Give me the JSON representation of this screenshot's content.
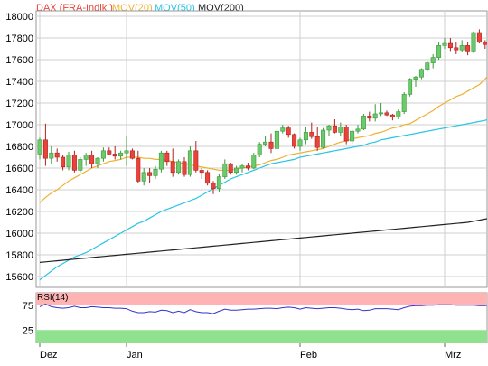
{
  "legend": [
    {
      "label": "DAX (FRA-Indik.)",
      "color": "#e8443a"
    },
    {
      "label": "MOV(20)",
      "color": "#f0b030"
    },
    {
      "label": "MOV(50)",
      "color": "#29c4e6"
    },
    {
      "label": "MOV(200)",
      "color": "#222222"
    }
  ],
  "rsi_label": "RSI(14)",
  "colors": {
    "up": "#6cc96c",
    "up_border": "#3a9a3a",
    "down": "#e8443a",
    "down_border": "#b02020",
    "grid": "#cfcfcf",
    "frame": "#999999",
    "rsi_line": "#3333cc",
    "rsi_overbought": "#ffb3b3",
    "rsi_oversold": "#8fe08f"
  },
  "chart_data": [
    {
      "type": "candlestick",
      "title": "DAX (FRA-Indik.)",
      "ylim": [
        15500,
        18050
      ],
      "yticks": [
        15600,
        15800,
        16000,
        16200,
        16400,
        16600,
        16800,
        17000,
        17200,
        17400,
        17600,
        17800,
        18000
      ],
      "xticks": [
        {
          "label": "Dez",
          "index": 0
        },
        {
          "label": "Jan",
          "index": 15
        },
        {
          "label": "Feb",
          "index": 45
        },
        {
          "label": "Mrz",
          "index": 70
        }
      ],
      "ohlc": [
        [
          16730,
          16880,
          16680,
          16860
        ],
        [
          16860,
          17010,
          16620,
          16690
        ],
        [
          16690,
          16800,
          16640,
          16740
        ],
        [
          16740,
          16780,
          16660,
          16700
        ],
        [
          16700,
          16720,
          16580,
          16610
        ],
        [
          16610,
          16750,
          16580,
          16720
        ],
        [
          16720,
          16760,
          16560,
          16580
        ],
        [
          16580,
          16700,
          16560,
          16680
        ],
        [
          16680,
          16740,
          16620,
          16720
        ],
        [
          16720,
          16760,
          16600,
          16640
        ],
        [
          16640,
          16700,
          16600,
          16690
        ],
        [
          16690,
          16790,
          16660,
          16760
        ],
        [
          16760,
          16790,
          16720,
          16730
        ],
        [
          16730,
          16800,
          16680,
          16710
        ],
        [
          16710,
          16760,
          16680,
          16740
        ],
        [
          16740,
          16900,
          16620,
          16760
        ],
        [
          16760,
          16780,
          16680,
          16690
        ],
        [
          16690,
          16760,
          16460,
          16480
        ],
        [
          16480,
          16600,
          16440,
          16560
        ],
        [
          16560,
          16600,
          16460,
          16530
        ],
        [
          16530,
          16620,
          16500,
          16590
        ],
        [
          16590,
          16760,
          16560,
          16740
        ],
        [
          16740,
          16760,
          16620,
          16660
        ],
        [
          16660,
          16780,
          16520,
          16560
        ],
        [
          16560,
          16680,
          16540,
          16660
        ],
        [
          16660,
          16700,
          16520,
          16540
        ],
        [
          16540,
          16800,
          16520,
          16760
        ],
        [
          16760,
          16850,
          16560,
          16580
        ],
        [
          16580,
          16600,
          16500,
          16560
        ],
        [
          16560,
          16580,
          16440,
          16460
        ],
        [
          16460,
          16480,
          16360,
          16410
        ],
        [
          16410,
          16550,
          16380,
          16520
        ],
        [
          16520,
          16680,
          16500,
          16640
        ],
        [
          16640,
          16650,
          16540,
          16560
        ],
        [
          16560,
          16620,
          16540,
          16600
        ],
        [
          16600,
          16640,
          16560,
          16620
        ],
        [
          16620,
          16650,
          16580,
          16600
        ],
        [
          16600,
          16740,
          16590,
          16720
        ],
        [
          16720,
          16840,
          16700,
          16820
        ],
        [
          16820,
          16900,
          16800,
          16840
        ],
        [
          16840,
          16920,
          16740,
          16780
        ],
        [
          16780,
          16960,
          16770,
          16940
        ],
        [
          16940,
          17000,
          16920,
          16970
        ],
        [
          16970,
          16990,
          16880,
          16910
        ],
        [
          16910,
          16920,
          16780,
          16800
        ],
        [
          16800,
          16880,
          16760,
          16860
        ],
        [
          16860,
          16980,
          16820,
          16930
        ],
        [
          16930,
          17020,
          16870,
          16890
        ],
        [
          16890,
          16980,
          16760,
          16790
        ],
        [
          16790,
          16970,
          16780,
          16950
        ],
        [
          16950,
          17000,
          16900,
          16990
        ],
        [
          16990,
          17050,
          16920,
          16930
        ],
        [
          16930,
          17020,
          16900,
          16980
        ],
        [
          16980,
          17000,
          16820,
          16850
        ],
        [
          16850,
          16960,
          16820,
          16940
        ],
        [
          16940,
          17000,
          16920,
          16960
        ],
        [
          16960,
          17100,
          16950,
          17080
        ],
        [
          17080,
          17120,
          17030,
          17060
        ],
        [
          17060,
          17190,
          17030,
          17100
        ],
        [
          17100,
          17200,
          17080,
          17110
        ],
        [
          17110,
          17130,
          17080,
          17090
        ],
        [
          17090,
          17100,
          17040,
          17070
        ],
        [
          17070,
          17140,
          17050,
          17120
        ],
        [
          17120,
          17300,
          17100,
          17280
        ],
        [
          17280,
          17430,
          17260,
          17420
        ],
        [
          17420,
          17450,
          17350,
          17440
        ],
        [
          17440,
          17520,
          17420,
          17510
        ],
        [
          17510,
          17590,
          17490,
          17570
        ],
        [
          17570,
          17650,
          17520,
          17620
        ],
        [
          17620,
          17760,
          17600,
          17730
        ],
        [
          17730,
          17800,
          17700,
          17750
        ],
        [
          17750,
          17800,
          17680,
          17710
        ],
        [
          17710,
          17760,
          17650,
          17690
        ],
        [
          17690,
          17780,
          17670,
          17730
        ],
        [
          17730,
          17760,
          17640,
          17680
        ],
        [
          17680,
          17860,
          17660,
          17850
        ],
        [
          17850,
          17880,
          17750,
          17760
        ],
        [
          17760,
          17780,
          17700,
          17740
        ],
        [
          17740,
          17990,
          17700,
          17960
        ]
      ],
      "series": [
        {
          "name": "MOV(20)",
          "values": [
            16280,
            16330,
            16370,
            16400,
            16440,
            16480,
            16510,
            16540,
            16570,
            16600,
            16620,
            16640,
            16660,
            16670,
            16680,
            16700,
            16700,
            16700,
            16690,
            16690,
            16680,
            16680,
            16670,
            16660,
            16650,
            16640,
            16630,
            16620,
            16610,
            16600,
            16590,
            16580,
            16580,
            16580,
            16590,
            16600,
            16610,
            16620,
            16630,
            16650,
            16670,
            16680,
            16700,
            16720,
            16730,
            16740,
            16750,
            16760,
            16770,
            16780,
            16800,
            16820,
            16840,
            16850,
            16870,
            16880,
            16890,
            16900,
            16920,
            16930,
            16950,
            16970,
            16980,
            17000,
            17010,
            17040,
            17070,
            17100,
            17130,
            17170,
            17200,
            17230,
            17260,
            17280,
            17310,
            17340,
            17370,
            17420,
            17490
          ]
        },
        {
          "name": "MOV(50)",
          "values": [
            15570,
            15610,
            15650,
            15690,
            15720,
            15750,
            15780,
            15800,
            15820,
            15850,
            15880,
            15910,
            15940,
            15970,
            16000,
            16030,
            16060,
            16090,
            16110,
            16140,
            16170,
            16200,
            16220,
            16240,
            16260,
            16280,
            16300,
            16320,
            16350,
            16380,
            16410,
            16440,
            16470,
            16500,
            16520,
            16540,
            16560,
            16580,
            16600,
            16620,
            16640,
            16650,
            16660,
            16670,
            16680,
            16700,
            16710,
            16720,
            16730,
            16740,
            16750,
            16760,
            16770,
            16780,
            16790,
            16800,
            16810,
            16830,
            16840,
            16860,
            16870,
            16880,
            16890,
            16900,
            16910,
            16920,
            16930,
            16940,
            16950,
            16960,
            16970,
            16980,
            16990,
            17000,
            17010,
            17020,
            17030,
            17040,
            17060
          ]
        },
        {
          "name": "MOV(200)",
          "values": [
            15730,
            15735,
            15740,
            15745,
            15750,
            15755,
            15760,
            15765,
            15770,
            15775,
            15780,
            15785,
            15790,
            15795,
            15800,
            15805,
            15810,
            15815,
            15820,
            15825,
            15830,
            15835,
            15840,
            15845,
            15850,
            15855,
            15860,
            15865,
            15870,
            15875,
            15880,
            15885,
            15890,
            15895,
            15900,
            15905,
            15910,
            15915,
            15920,
            15925,
            15930,
            15935,
            15940,
            15945,
            15950,
            15955,
            15960,
            15965,
            15970,
            15975,
            15980,
            15985,
            15990,
            15995,
            16000,
            16005,
            16010,
            16015,
            16020,
            16025,
            16030,
            16035,
            16040,
            16045,
            16050,
            16055,
            16060,
            16065,
            16070,
            16075,
            16080,
            16085,
            16090,
            16095,
            16100,
            16110,
            16120,
            16130,
            16140
          ]
        }
      ]
    },
    {
      "type": "line",
      "title": "RSI(14)",
      "ylim": [
        0,
        100
      ],
      "yticks": [
        25,
        75
      ],
      "bands": {
        "overbought": [
          75,
          100
        ],
        "oversold": [
          0,
          25
        ]
      },
      "series": [
        {
          "values": [
            72,
            77,
            72,
            70,
            69,
            70,
            73,
            70,
            70,
            72,
            71,
            70,
            70,
            69,
            69,
            68,
            63,
            60,
            60,
            62,
            61,
            65,
            64,
            60,
            63,
            60,
            66,
            62,
            60,
            60,
            58,
            63,
            67,
            65,
            65,
            66,
            67,
            67,
            68,
            69,
            69,
            68,
            70,
            71,
            70,
            67,
            70,
            69,
            68,
            69,
            70,
            70,
            69,
            67,
            66,
            67,
            64,
            65,
            68,
            68,
            68,
            67,
            66,
            70,
            73,
            74,
            74,
            75,
            75,
            76,
            76,
            76,
            75,
            75,
            75,
            75,
            74,
            74,
            76
          ]
        }
      ]
    }
  ]
}
